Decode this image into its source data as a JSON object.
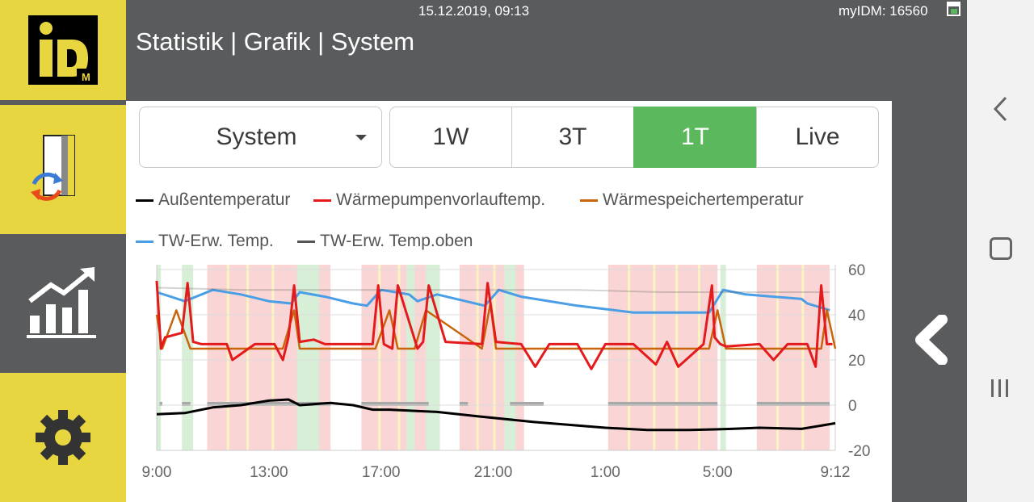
{
  "header": {
    "datetime": "15.12.2019, 09:13",
    "account": "myIDM: 16560",
    "title": "Statistik | Grafik | System"
  },
  "logo": {
    "text": "iD",
    "sub": "M",
    "name": "iDM"
  },
  "sidebar": [
    {
      "name": "heatpump-tile",
      "icon": "heat-exchange-icon",
      "color": "#e8d640"
    },
    {
      "name": "statistics-tile",
      "icon": "chart-up-icon",
      "color": "#5a5b5d",
      "active": true
    },
    {
      "name": "settings-tile",
      "icon": "gear-icon",
      "color": "#e8d640"
    }
  ],
  "controls": {
    "dropdown": {
      "value": "System"
    },
    "ranges": [
      {
        "label": "1W",
        "active": false
      },
      {
        "label": "3T",
        "active": false
      },
      {
        "label": "1T",
        "active": true
      },
      {
        "label": "Live",
        "active": false
      }
    ],
    "active_color": "#5cb85c"
  },
  "legend": [
    {
      "label": "Außentemperatur",
      "color": "#000000"
    },
    {
      "label": "Wärmepumpenvorlauftemp.",
      "color": "#e41a1c"
    },
    {
      "label": "Wärmespeichertemperatur",
      "color": "#c8640a"
    },
    {
      "label": "TW-Erw. Temp.",
      "color": "#4a9ee6"
    },
    {
      "label": "TW-Erw. Temp.oben",
      "color": "#555555"
    }
  ],
  "chart_data": {
    "type": "line",
    "x_labels": [
      "9:00",
      "13:00",
      "17:00",
      "21:00",
      "1:00",
      "5:00",
      "9:12"
    ],
    "y_ticks": [
      60,
      40,
      20,
      0,
      -20
    ],
    "ylim": [
      -20,
      60
    ],
    "xlim_hours": [
      0,
      24.2
    ],
    "grid": true,
    "series": [
      {
        "name": "Außentemperatur",
        "color": "#000000",
        "x": [
          0,
          1,
          2,
          3,
          4,
          4.7,
          5.1,
          6.2,
          7,
          7.7,
          8.3,
          10,
          11.5,
          13.5,
          16,
          17.5,
          19,
          20.5,
          21.5,
          23,
          24.2
        ],
        "y": [
          -4,
          -3.5,
          -1,
          0,
          2,
          2.5,
          0,
          1,
          0,
          -2,
          -2,
          -3,
          -5,
          -7.5,
          -10,
          -11,
          -11,
          -10.5,
          -10,
          -10.5,
          -8
        ]
      },
      {
        "name": "TW-Erw. Temp.",
        "color": "#4a9ee6",
        "x": [
          0,
          1,
          2,
          3,
          4,
          4.8,
          5.1,
          6,
          7,
          7.5,
          8,
          9,
          9.3,
          10,
          11.7,
          12.2,
          13,
          15,
          17,
          19.7,
          20.2,
          21,
          22,
          23,
          23.2,
          24
        ],
        "y": [
          50,
          46,
          51,
          49,
          46,
          45,
          50,
          48,
          45,
          44,
          51,
          49,
          46,
          49,
          44,
          51,
          48,
          44,
          41,
          41,
          51,
          49,
          48,
          47,
          45,
          42
        ]
      },
      {
        "name": "TW-Erw. Temp.oben",
        "color": "#555555",
        "x": [
          0,
          3,
          6,
          9,
          12,
          15,
          18,
          21,
          24
        ],
        "y": [
          52,
          51,
          51,
          51,
          51,
          51,
          50,
          50,
          50
        ]
      },
      {
        "name": "Wärmespeichertemperatur",
        "color": "#c8640a",
        "x": [
          0,
          0.2,
          0.7,
          1.2,
          4.5,
          4.9,
          5.1,
          7.8,
          8.3,
          8.6,
          9.2,
          9.6,
          11.6,
          11.9,
          12.1,
          19.7,
          20,
          20.3,
          23.7,
          23.9,
          24.2
        ],
        "y": [
          40,
          25,
          42,
          25,
          25,
          42,
          25,
          25,
          42,
          25,
          25,
          42,
          25,
          45,
          25,
          25,
          42,
          25,
          25,
          42,
          25
        ]
      },
      {
        "name": "Wärmepumpenvorlauftemp.",
        "color": "#e41a1c",
        "x": [
          0,
          0.15,
          0.3,
          0.9,
          1.1,
          1.3,
          1.6,
          2.5,
          2.7,
          3.5,
          4.2,
          4.5,
          4.7,
          4.9,
          5.1,
          5.6,
          6,
          7.7,
          7.9,
          8.1,
          8.4,
          8.6,
          9.3,
          9.5,
          9.7,
          10.3,
          11.6,
          11.8,
          12.1,
          13,
          13.5,
          14,
          15,
          15.5,
          16,
          17,
          17.8,
          18.2,
          18.6,
          19.5,
          19.8,
          19.9,
          20.1,
          20.3,
          21.5,
          22,
          22.5,
          23.2,
          23.5,
          23.7,
          23.9,
          24.1
        ],
        "y": [
          55,
          25,
          30,
          32,
          54,
          28,
          27,
          27,
          20,
          27,
          27,
          20,
          30,
          53,
          28,
          29,
          27,
          27,
          53,
          27,
          25,
          53,
          25,
          28,
          53,
          28,
          27,
          54,
          28,
          27,
          17,
          27,
          27,
          16,
          27,
          27,
          18,
          28,
          17,
          27,
          53,
          30,
          27,
          26,
          27,
          20,
          27,
          27,
          17,
          53,
          27,
          27
        ]
      }
    ],
    "heating_bands_hours": [
      [
        1.8,
        6.2
      ],
      [
        7.3,
        9.7
      ],
      [
        10.8,
        13.1
      ],
      [
        16.1,
        20.0
      ],
      [
        21.4,
        24.0
      ]
    ],
    "dhw_bands_hours": [
      [
        0,
        0.15
      ],
      [
        0.9,
        1.3
      ],
      [
        5.0,
        5.8
      ],
      [
        8.9,
        9.2
      ],
      [
        9.6,
        10.1
      ],
      [
        12.4,
        12.8
      ],
      [
        20.1,
        20.3
      ]
    ]
  },
  "system_nav": {
    "back_icon": "chevron-left-icon",
    "home_icon": "square-home-icon",
    "recent_icon": "recents-icon"
  }
}
